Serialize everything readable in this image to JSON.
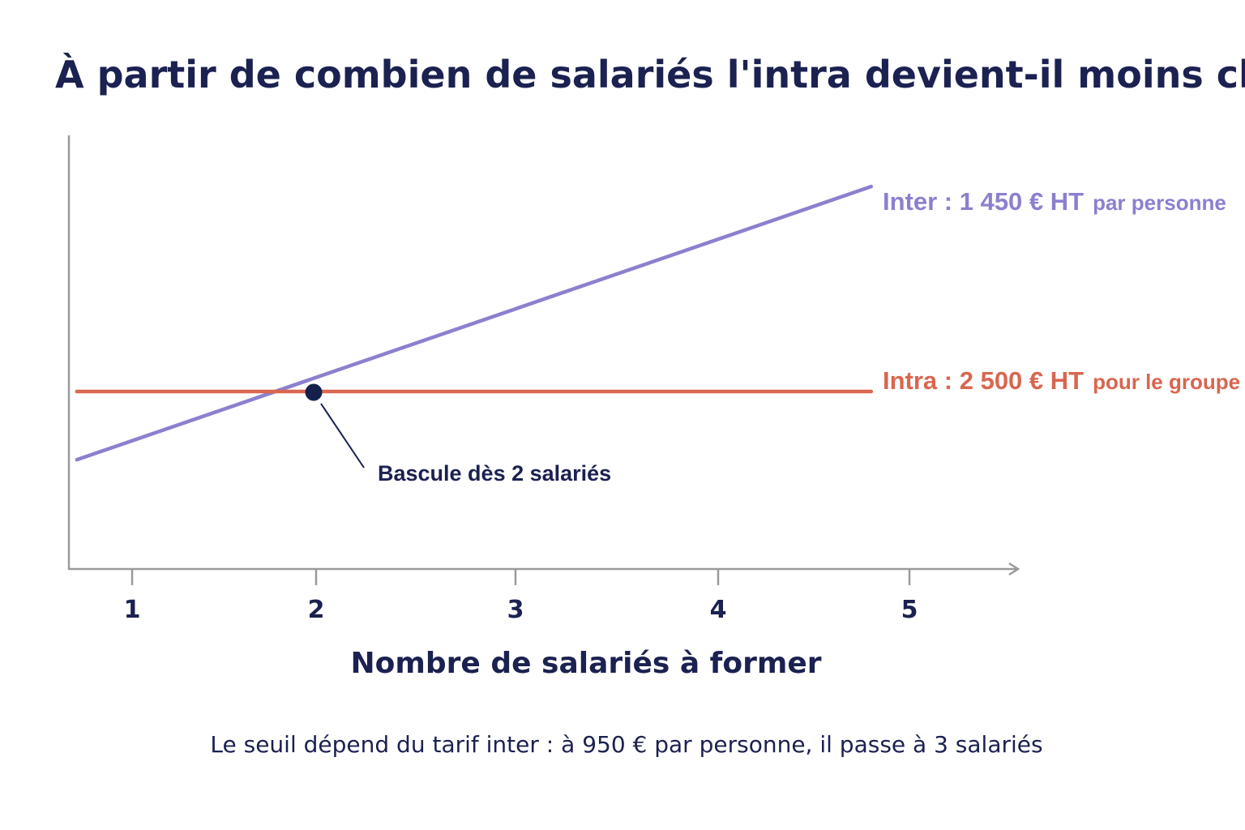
{
  "colors": {
    "title": "#1b2150",
    "inter": "#8b80cf",
    "intra": "#d9664f",
    "axis": "#9a9a9a",
    "text": "#1b2150",
    "marker": "#14204c"
  },
  "chart_data": {
    "type": "line",
    "title": "À partir de combien de salariés l'intra devient-il moins cher ?",
    "xlabel": "Nombre de salariés à former",
    "ylabel": "",
    "x_ticks": [
      1,
      2,
      3,
      4,
      5
    ],
    "x_range": [
      0.7,
      4.8
    ],
    "grid": false,
    "series": [
      {
        "key": "inter",
        "label_main": "Inter : 1 450 € HT",
        "label_sub": "par personne",
        "x": [
          0.7,
          4.8
        ],
        "y": [
          1015,
          6960
        ]
      },
      {
        "key": "intra",
        "label_main": "Intra : 2 500 € HT",
        "label_sub": "pour le groupe",
        "x": [
          0.7,
          4.8
        ],
        "y": [
          2500,
          2500
        ]
      }
    ],
    "annotation": {
      "text": "Bascule dès 2 salariés",
      "x": 2,
      "y": 2500
    },
    "footnote": "Le seuil dépend du tarif inter : à 950 € par personne, il passe à 3 salariés"
  }
}
